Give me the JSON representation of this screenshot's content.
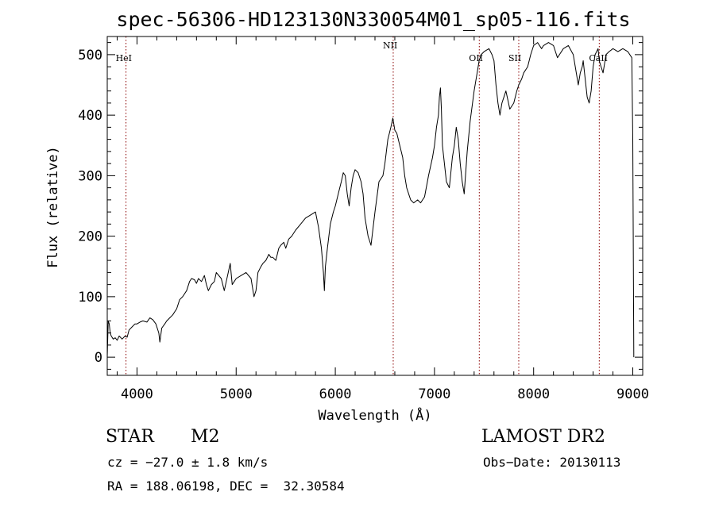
{
  "chart_data": {
    "type": "line",
    "title": "spec-56306-HD123130N330054M01_sp05-116.fits",
    "xlabel": "Wavelength (Å)",
    "ylabel": "Flux (relative)",
    "xlim": [
      3700,
      9100
    ],
    "ylim": [
      -30,
      530
    ],
    "x_ticks": [
      4000,
      5000,
      6000,
      7000,
      8000,
      9000
    ],
    "y_ticks": [
      0,
      100,
      200,
      300,
      400,
      500
    ],
    "grid": false,
    "line_color": "#000000",
    "marker_color": "#8b0000",
    "spectral_lines": [
      {
        "label": "HeI",
        "wavelength": 3889
      },
      {
        "label": "NII",
        "wavelength": 6584
      },
      {
        "label": "OII",
        "wavelength": 7452
      },
      {
        "label": "SII",
        "wavelength": 7850
      },
      {
        "label": "CaII",
        "wavelength": 8662
      }
    ],
    "series": [
      {
        "x": [
          3700,
          3710,
          3720,
          3730,
          3740,
          3760,
          3780,
          3800,
          3820,
          3850,
          3880,
          3900,
          3920,
          3950,
          3980,
          4000,
          4030,
          4060,
          4100,
          4130,
          4160,
          4190,
          4220,
          4230,
          4250,
          4280,
          4300,
          4330,
          4360,
          4400,
          4430,
          4460,
          4500,
          4530,
          4550,
          4580,
          4600,
          4620,
          4650,
          4680,
          4700,
          4720,
          4750,
          4780,
          4800,
          4850,
          4880,
          4900,
          4920,
          4940,
          4960,
          4980,
          5000,
          5050,
          5100,
          5150,
          5180,
          5200,
          5220,
          5250,
          5270,
          5300,
          5330,
          5350,
          5370,
          5400,
          5430,
          5450,
          5480,
          5500,
          5530,
          5560,
          5600,
          5650,
          5700,
          5750,
          5800,
          5830,
          5860,
          5880,
          5890,
          5900,
          5920,
          5950,
          5980,
          6000,
          6030,
          6060,
          6080,
          6100,
          6120,
          6140,
          6160,
          6180,
          6200,
          6230,
          6260,
          6280,
          6300,
          6330,
          6360,
          6400,
          6440,
          6480,
          6500,
          6530,
          6560,
          6580,
          6600,
          6620,
          6650,
          6680,
          6700,
          6720,
          6740,
          6760,
          6790,
          6830,
          6860,
          6900,
          6940,
          6980,
          7000,
          7020,
          7040,
          7050,
          7060,
          7070,
          7080,
          7100,
          7120,
          7150,
          7180,
          7200,
          7220,
          7240,
          7260,
          7280,
          7300,
          7330,
          7360,
          7400,
          7430,
          7450,
          7470,
          7500,
          7550,
          7580,
          7600,
          7620,
          7640,
          7660,
          7680,
          7700,
          7720,
          7740,
          7760,
          7800,
          7830,
          7850,
          7880,
          7900,
          7940,
          7970,
          8000,
          8040,
          8080,
          8100,
          8150,
          8200,
          8220,
          8240,
          8260,
          8300,
          8350,
          8400,
          8430,
          8450,
          8470,
          8490,
          8500,
          8520,
          8540,
          8560,
          8580,
          8600,
          8620,
          8650,
          8662,
          8680,
          8700,
          8730,
          8760,
          8800,
          8850,
          8900,
          8950,
          8990,
          9000,
          9010
        ],
        "y": [
          0,
          60,
          55,
          40,
          35,
          30,
          32,
          28,
          35,
          30,
          35,
          33,
          45,
          50,
          55,
          55,
          58,
          60,
          58,
          65,
          62,
          55,
          40,
          25,
          48,
          55,
          60,
          65,
          70,
          80,
          95,
          100,
          110,
          125,
          130,
          128,
          122,
          130,
          125,
          135,
          120,
          110,
          120,
          125,
          140,
          130,
          110,
          125,
          140,
          155,
          120,
          125,
          130,
          135,
          140,
          130,
          100,
          110,
          140,
          150,
          155,
          160,
          170,
          165,
          165,
          160,
          180,
          185,
          190,
          180,
          195,
          200,
          210,
          220,
          230,
          235,
          240,
          215,
          180,
          140,
          110,
          150,
          180,
          220,
          240,
          250,
          270,
          290,
          305,
          300,
          270,
          250,
          280,
          300,
          310,
          305,
          290,
          270,
          230,
          200,
          185,
          240,
          290,
          300,
          320,
          360,
          380,
          395,
          375,
          370,
          350,
          330,
          300,
          280,
          270,
          260,
          255,
          260,
          255,
          265,
          300,
          330,
          350,
          380,
          400,
          430,
          445,
          410,
          350,
          320,
          290,
          280,
          330,
          350,
          380,
          360,
          320,
          290,
          270,
          340,
          390,
          440,
          470,
          490,
          500,
          505,
          510,
          500,
          490,
          450,
          420,
          400,
          420,
          430,
          440,
          425,
          410,
          420,
          440,
          450,
          460,
          470,
          480,
          500,
          515,
          520,
          510,
          515,
          520,
          515,
          505,
          495,
          500,
          510,
          515,
          500,
          470,
          450,
          470,
          480,
          490,
          460,
          430,
          420,
          440,
          480,
          500,
          510,
          490,
          480,
          470,
          500,
          505,
          510,
          505,
          510,
          505,
          495,
          360,
          0
        ]
      }
    ]
  },
  "footer": {
    "object_type": "STAR",
    "subclass": "M2",
    "survey": "LAMOST DR2",
    "cz": "cz = −27.0 ± 1.8 km/s",
    "obs_date": "Obs−Date: 20130113",
    "coords": "RA = 188.06198, DEC =  32.30584"
  }
}
